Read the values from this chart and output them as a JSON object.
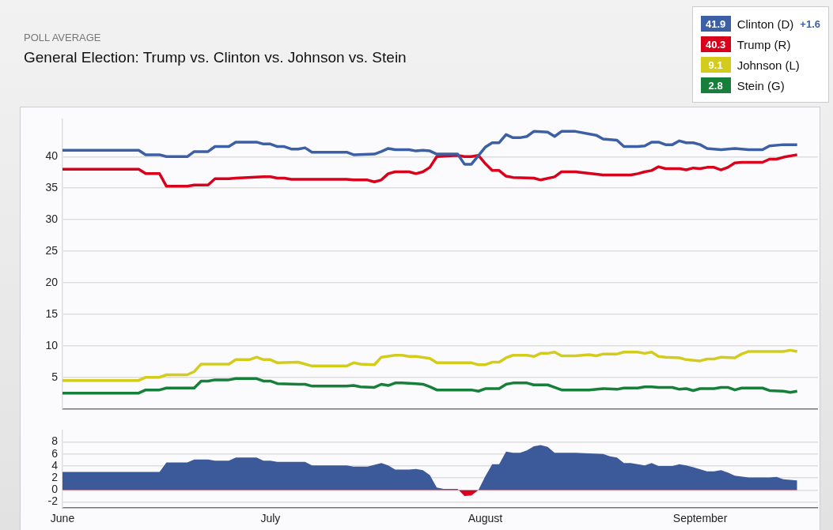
{
  "chart_data": [
    {
      "type": "line",
      "subtitle": "POLL AVERAGE",
      "title": "General Election: Trump vs. Clinton vs. Johnson vs. Stein",
      "xlim": [
        "--06-01",
        "--09-18"
      ],
      "ylim": [
        0,
        46
      ],
      "yticks": [
        5,
        10,
        15,
        20,
        25,
        30,
        35,
        40
      ],
      "grid": "y",
      "tick_labels": "y",
      "legend": "top right",
      "annotations": [
        "41.9",
        "40.3",
        "9.1",
        "2.8"
      ],
      "series": [
        {
          "name": "Clinton (D)",
          "color": "#3d5fa5",
          "x": [
            "--06-01",
            "--06-12",
            "--06-13",
            "--06-15",
            "--06-16",
            "--06-19",
            "--06-20",
            "--06-22",
            "--06-23",
            "--06-25",
            "--06-26",
            "--06-29",
            "--06-30",
            "--07-01",
            "--07-02",
            "--07-03",
            "--07-04",
            "--07-05",
            "--07-06",
            "--07-07",
            "--07-12",
            "--07-13",
            "--07-16",
            "--07-17",
            "--07-18",
            "--07-19",
            "--07-21",
            "--07-22",
            "--07-23",
            "--07-24",
            "--07-25",
            "--07-28",
            "--07-29",
            "--07-30",
            "--08-01",
            "--08-02",
            "--08-03",
            "--08-04",
            "--08-05",
            "--08-06",
            "--08-07",
            "--08-08",
            "--08-10",
            "--08-11",
            "--08-12",
            "--08-14",
            "--08-17",
            "--08-18",
            "--08-20",
            "--08-21",
            "--08-23",
            "--08-24",
            "--08-25",
            "--08-26",
            "--08-27",
            "--08-28",
            "--08-29",
            "--08-30",
            "--08-31",
            "--09-01",
            "--09-02",
            "--09-04",
            "--09-06",
            "--09-08",
            "--09-10",
            "--09-11",
            "--09-13",
            "--09-15"
          ],
          "values": [
            41.0,
            41.0,
            40.3,
            40.3,
            40.0,
            40.0,
            40.8,
            40.8,
            41.6,
            41.6,
            42.3,
            42.3,
            42.0,
            42.0,
            41.6,
            41.6,
            41.2,
            41.2,
            41.4,
            40.7,
            40.7,
            40.3,
            40.4,
            40.8,
            41.3,
            41.1,
            41.1,
            40.9,
            41.0,
            40.9,
            40.4,
            40.4,
            38.8,
            38.8,
            41.5,
            42.2,
            42.2,
            43.5,
            43.0,
            43.0,
            43.2,
            44.0,
            43.9,
            43.2,
            44.0,
            44.0,
            43.4,
            42.8,
            42.6,
            41.6,
            41.6,
            41.7,
            42.3,
            42.3,
            41.9,
            41.9,
            42.5,
            42.2,
            42.2,
            41.9,
            41.3,
            41.1,
            41.3,
            41.1,
            41.1,
            41.7,
            41.9,
            41.9
          ]
        },
        {
          "name": "Trump (R)",
          "color": "#d9001b",
          "x": [
            "--06-01",
            "--06-12",
            "--06-13",
            "--06-15",
            "--06-16",
            "--06-19",
            "--06-20",
            "--06-22",
            "--06-23",
            "--06-25",
            "--06-26",
            "--06-30",
            "--07-01",
            "--07-02",
            "--07-03",
            "--07-04",
            "--07-12",
            "--07-13",
            "--07-15",
            "--07-16",
            "--07-17",
            "--07-18",
            "--07-19",
            "--07-21",
            "--07-22",
            "--07-23",
            "--07-24",
            "--07-25",
            "--07-28",
            "--07-29",
            "--07-30",
            "--07-31",
            "--08-01",
            "--08-02",
            "--08-03",
            "--08-04",
            "--08-05",
            "--08-08",
            "--08-09",
            "--08-11",
            "--08-12",
            "--08-14",
            "--08-18",
            "--08-22",
            "--08-23",
            "--08-24",
            "--08-25",
            "--08-26",
            "--08-27",
            "--08-29",
            "--08-30",
            "--08-31",
            "--09-01",
            "--09-02",
            "--09-03",
            "--09-04",
            "--09-05",
            "--09-06",
            "--09-07",
            "--09-10",
            "--09-11",
            "--09-12",
            "--09-13",
            "--09-15"
          ],
          "values": [
            38.0,
            38.0,
            37.3,
            37.3,
            35.3,
            35.3,
            35.5,
            35.5,
            36.5,
            36.5,
            36.6,
            36.8,
            36.8,
            36.6,
            36.6,
            36.4,
            36.4,
            36.3,
            36.3,
            36.0,
            36.3,
            37.3,
            37.6,
            37.6,
            37.3,
            37.6,
            38.3,
            40.0,
            40.2,
            40.0,
            40.0,
            40.2,
            38.9,
            37.8,
            37.8,
            36.9,
            36.7,
            36.6,
            36.3,
            36.8,
            37.6,
            37.6,
            37.1,
            37.1,
            37.3,
            37.6,
            37.8,
            38.4,
            38.1,
            38.1,
            37.9,
            38.2,
            38.1,
            38.3,
            38.3,
            37.9,
            38.3,
            39.0,
            39.1,
            39.1,
            39.6,
            39.6,
            39.9,
            40.3
          ]
        },
        {
          "name": "Johnson (L)",
          "color": "#d4cc1c",
          "x": [
            "--06-01",
            "--06-12",
            "--06-13",
            "--06-15",
            "--06-16",
            "--06-19",
            "--06-20",
            "--06-21",
            "--06-25",
            "--06-26",
            "--06-28",
            "--06-29",
            "--06-30",
            "--07-01",
            "--07-02",
            "--07-05",
            "--07-07",
            "--07-12",
            "--07-13",
            "--07-14",
            "--07-16",
            "--07-17",
            "--07-19",
            "--07-20",
            "--07-21",
            "--07-22",
            "--07-24",
            "--07-25",
            "--07-30",
            "--07-31",
            "--08-01",
            "--08-02",
            "--08-03",
            "--08-04",
            "--08-05",
            "--08-07",
            "--08-08",
            "--08-09",
            "--08-10",
            "--08-11",
            "--08-12",
            "--08-14",
            "--08-16",
            "--08-17",
            "--08-18",
            "--08-20",
            "--08-21",
            "--08-23",
            "--08-24",
            "--08-25",
            "--08-26",
            "--08-27",
            "--08-29",
            "--08-30",
            "--09-01",
            "--09-02",
            "--09-03",
            "--09-04",
            "--09-06",
            "--09-07",
            "--09-08",
            "--09-10",
            "--09-12",
            "--09-13",
            "--09-14",
            "--09-15"
          ],
          "values": [
            4.5,
            4.5,
            5.0,
            5.0,
            5.4,
            5.4,
            5.9,
            7.1,
            7.1,
            7.8,
            7.8,
            8.2,
            7.8,
            7.8,
            7.3,
            7.4,
            6.8,
            6.8,
            7.3,
            7.1,
            7.0,
            8.2,
            8.5,
            8.5,
            8.3,
            8.3,
            8.0,
            7.3,
            7.3,
            7.0,
            7.0,
            7.4,
            7.4,
            8.1,
            8.5,
            8.5,
            8.3,
            8.8,
            8.8,
            9.0,
            8.4,
            8.4,
            8.6,
            8.4,
            8.7,
            8.7,
            9.0,
            9.0,
            8.8,
            9.0,
            8.3,
            8.2,
            8.1,
            7.8,
            7.6,
            7.9,
            7.9,
            8.2,
            8.1,
            8.7,
            9.1,
            9.1,
            9.1,
            9.1,
            9.3,
            9.1
          ]
        },
        {
          "name": "Stein (G)",
          "color": "#16803a",
          "x": [
            "--06-01",
            "--06-12",
            "--06-13",
            "--06-15",
            "--06-16",
            "--06-20",
            "--06-21",
            "--06-22",
            "--06-23",
            "--06-25",
            "--06-26",
            "--06-29",
            "--06-30",
            "--07-01",
            "--07-02",
            "--07-05",
            "--07-06",
            "--07-07",
            "--07-12",
            "--07-13",
            "--07-14",
            "--07-16",
            "--07-17",
            "--07-18",
            "--07-19",
            "--07-20",
            "--07-22",
            "--07-23",
            "--07-24",
            "--07-25",
            "--07-30",
            "--07-31",
            "--08-01",
            "--08-03",
            "--08-04",
            "--08-05",
            "--08-07",
            "--08-08",
            "--08-10",
            "--08-11",
            "--08-12",
            "--08-16",
            "--08-18",
            "--08-20",
            "--08-21",
            "--08-23",
            "--08-24",
            "--08-25",
            "--08-26",
            "--08-28",
            "--08-29",
            "--08-30",
            "--08-31",
            "--09-01",
            "--09-03",
            "--09-04",
            "--09-05",
            "--09-06",
            "--09-07",
            "--09-10",
            "--09-11",
            "--09-13",
            "--09-14",
            "--09-15"
          ],
          "values": [
            2.5,
            2.5,
            3.0,
            3.0,
            3.3,
            3.3,
            4.4,
            4.4,
            4.6,
            4.6,
            4.8,
            4.8,
            4.4,
            4.4,
            4.0,
            3.9,
            3.9,
            3.6,
            3.6,
            3.7,
            3.5,
            3.4,
            3.9,
            3.7,
            4.1,
            4.1,
            4.0,
            3.9,
            3.5,
            3.0,
            3.0,
            2.8,
            3.2,
            3.2,
            3.9,
            4.1,
            4.1,
            3.8,
            3.8,
            3.4,
            3.0,
            3.0,
            3.2,
            3.1,
            3.3,
            3.3,
            3.5,
            3.5,
            3.4,
            3.4,
            3.1,
            3.2,
            2.9,
            3.2,
            3.2,
            3.4,
            3.4,
            3.0,
            3.3,
            3.3,
            2.9,
            2.8,
            2.6,
            2.8
          ]
        }
      ]
    },
    {
      "type": "area",
      "xlim": [
        "--06-01",
        "--09-18"
      ],
      "xticks": [
        {
          "value": "--06-01",
          "label": "June"
        },
        {
          "value": "--07-01",
          "label": "July"
        },
        {
          "value": "--08-01",
          "label": "August"
        },
        {
          "value": "--09-01",
          "label": "September"
        }
      ],
      "ylim": [
        -3,
        10
      ],
      "yticks": [
        -2,
        0,
        2,
        4,
        6,
        8
      ],
      "grid": "y",
      "annotations": [
        "+1.6"
      ],
      "series": [
        {
          "color": "#3c5a9a",
          "x": [
            "--06-01",
            "--06-15",
            "--06-16",
            "--06-19",
            "--06-20",
            "--06-22",
            "--06-23",
            "--06-25",
            "--06-26",
            "--06-29",
            "--06-30",
            "--07-01",
            "--07-02",
            "--07-06",
            "--07-07",
            "--07-12",
            "--07-13",
            "--07-15",
            "--07-17",
            "--07-18",
            "--07-19",
            "--07-21",
            "--07-22",
            "--07-23",
            "--07-24",
            "--07-25",
            "--07-26",
            "--07-28",
            "--07-29",
            "--07-30",
            "--07-31",
            "--08-01",
            "--08-02",
            "--08-03",
            "--08-04",
            "--08-05",
            "--08-06",
            "--08-07",
            "--08-08",
            "--08-09",
            "--08-10",
            "--08-11",
            "--08-14",
            "--08-16",
            "--08-18",
            "--08-19",
            "--08-20",
            "--08-21",
            "--08-22",
            "--08-24",
            "--08-25",
            "--08-26",
            "--08-28",
            "--08-29",
            "--08-30",
            "--08-31",
            "--09-02",
            "--09-03",
            "--09-04",
            "--09-05",
            "--09-06",
            "--09-08",
            "--09-11",
            "--09-12",
            "--09-13",
            "--09-15"
          ],
          "values": [
            3.0,
            3.0,
            4.6,
            4.6,
            5.1,
            5.1,
            4.9,
            4.9,
            5.4,
            5.4,
            4.9,
            4.9,
            4.7,
            4.7,
            4.1,
            4.1,
            3.9,
            3.9,
            4.5,
            4.1,
            3.4,
            3.4,
            3.5,
            3.3,
            2.5,
            0.4,
            0.2,
            0.2,
            -1.0,
            -0.9,
            0.0,
            2.3,
            4.3,
            4.3,
            6.4,
            6.2,
            6.2,
            6.6,
            7.3,
            7.5,
            7.2,
            6.2,
            6.2,
            6.1,
            6.0,
            5.6,
            5.4,
            4.5,
            4.5,
            4.1,
            4.5,
            4.0,
            4.0,
            4.3,
            4.1,
            3.8,
            3.1,
            3.1,
            3.3,
            2.9,
            2.4,
            2.1,
            2.1,
            2.2,
            1.8,
            1.6
          ],
          "colors": [
            "#3c5a9a",
            "#3c5a9a",
            "#3c5a9a",
            "#3c5a9a",
            "#3c5a9a",
            "#3c5a9a",
            "#3c5a9a",
            "#3c5a9a",
            "#3c5a9a",
            "#3c5a9a",
            "#3c5a9a",
            "#3c5a9a",
            "#3c5a9a",
            "#3c5a9a",
            "#3c5a9a",
            "#3c5a9a",
            "#3c5a9a",
            "#3c5a9a",
            "#3c5a9a",
            "#3c5a9a",
            "#3c5a9a",
            "#3c5a9a",
            "#3c5a9a",
            "#3c5a9a",
            "#3c5a9a",
            "#3c5a9a",
            "#3c5a9a",
            "#3c5a9a",
            "#d9001b",
            "#d9001b",
            "#d9001b",
            "#3c5a9a",
            "#3c5a9a",
            "#3c5a9a",
            "#3c5a9a",
            "#3c5a9a",
            "#3c5a9a",
            "#3c5a9a",
            "#3c5a9a",
            "#3c5a9a",
            "#3c5a9a",
            "#3c5a9a",
            "#3c5a9a",
            "#3c5a9a",
            "#3c5a9a",
            "#3c5a9a",
            "#3c5a9a",
            "#3c5a9a",
            "#3c5a9a",
            "#3c5a9a",
            "#3c5a9a",
            "#3c5a9a",
            "#3c5a9a",
            "#3c5a9a",
            "#3c5a9a",
            "#3c5a9a",
            "#3c5a9a",
            "#3c5a9a",
            "#3c5a9a",
            "#3c5a9a",
            "#3c5a9a",
            "#3c5a9a",
            "#3c5a9a",
            "#3c5a9a",
            "#3c5a9a",
            "#3c5a9a"
          ]
        }
      ]
    }
  ]
}
